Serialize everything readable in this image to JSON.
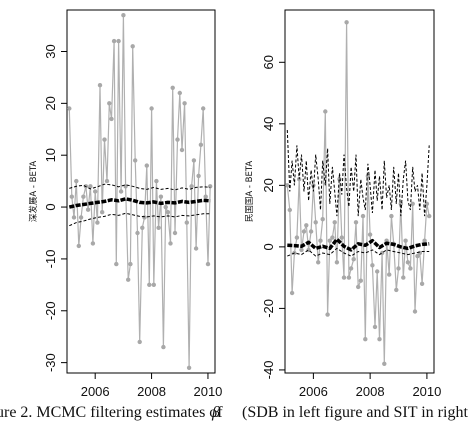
{
  "chart_data": [
    {
      "type": "line",
      "title": "",
      "xlabel": "",
      "ylabel": "深发展A - BETA",
      "xlim": [
        2005.0,
        2010.25
      ],
      "ylim": [
        -32,
        38
      ],
      "x_ticks": [
        2006,
        2008,
        2010
      ],
      "y_ticks": [
        -30,
        -20,
        -10,
        0,
        10,
        20,
        30
      ],
      "grid": false,
      "series": [
        {
          "style": "gray line with dots",
          "x": [
            2005.08,
            2005.17,
            2005.25,
            2005.33,
            2005.42,
            2005.5,
            2005.58,
            2005.67,
            2005.75,
            2005.83,
            2005.92,
            2006.0,
            2006.08,
            2006.17,
            2006.25,
            2006.33,
            2006.42,
            2006.5,
            2006.58,
            2006.67,
            2006.75,
            2006.83,
            2006.92,
            2007.0,
            2007.08,
            2007.17,
            2007.25,
            2007.33,
            2007.42,
            2007.5,
            2007.58,
            2007.67,
            2007.75,
            2007.83,
            2007.92,
            2008.0,
            2008.08,
            2008.17,
            2008.25,
            2008.33,
            2008.42,
            2008.5,
            2008.58,
            2008.67,
            2008.75,
            2008.83,
            2008.92,
            2009.0,
            2009.08,
            2009.17,
            2009.25,
            2009.33,
            2009.42,
            2009.5,
            2009.58,
            2009.67,
            2009.75,
            2009.83,
            2009.92,
            2010.0,
            2010.08
          ],
          "y": [
            19,
            2,
            -2,
            5,
            -7.5,
            -2,
            2,
            4,
            -0.5,
            4,
            -7,
            3,
            -3,
            23.5,
            -1,
            13,
            5,
            20,
            17,
            32,
            -11,
            32,
            3,
            37,
            4,
            -14,
            -11,
            31,
            9,
            -5,
            -26,
            -4,
            -2,
            8,
            -15,
            19,
            -15,
            5,
            -4,
            2,
            -27,
            0,
            -1,
            -7,
            23,
            -5,
            13,
            22,
            11,
            20,
            -3,
            -31,
            4,
            9,
            -8,
            6,
            12,
            19,
            2,
            -11,
            4
          ]
        },
        {
          "style": "black thick line",
          "x": [
            2005.08,
            2005.33,
            2005.58,
            2005.83,
            2006.08,
            2006.33,
            2006.58,
            2006.83,
            2007.08,
            2007.33,
            2007.58,
            2007.83,
            2008.08,
            2008.33,
            2008.58,
            2008.83,
            2009.08,
            2009.33,
            2009.58,
            2009.83,
            2010.08
          ],
          "y": [
            0,
            0.3,
            0.5,
            0.7,
            0.9,
            1.1,
            1.4,
            1.2,
            1.6,
            1.3,
            0.9,
            0.8,
            1.0,
            0.7,
            0.9,
            0.8,
            1.1,
            0.9,
            1.1,
            1.3,
            1.2
          ]
        },
        {
          "style": "dashed upper band",
          "x": [
            2005.08,
            2005.33,
            2005.58,
            2005.83,
            2006.08,
            2006.33,
            2006.58,
            2006.83,
            2007.08,
            2007.33,
            2007.58,
            2007.83,
            2008.08,
            2008.33,
            2008.58,
            2008.83,
            2009.08,
            2009.33,
            2009.58,
            2009.83,
            2010.08
          ],
          "y": [
            3.6,
            4.0,
            4.2,
            3.5,
            3.9,
            4.4,
            4.3,
            3.9,
            4.3,
            4.0,
            3.6,
            3.4,
            3.8,
            3.4,
            3.6,
            3.3,
            3.7,
            3.4,
            3.8,
            3.9,
            3.8
          ]
        },
        {
          "style": "dashed lower band",
          "x": [
            2005.08,
            2005.33,
            2005.58,
            2005.83,
            2006.08,
            2006.33,
            2006.58,
            2006.83,
            2007.08,
            2007.33,
            2007.58,
            2007.83,
            2008.08,
            2008.33,
            2008.58,
            2008.83,
            2009.08,
            2009.33,
            2009.58,
            2009.83,
            2010.08
          ],
          "y": [
            -3.6,
            -3.0,
            -2.7,
            -2.3,
            -2.0,
            -1.8,
            -1.4,
            -1.6,
            -1.2,
            -1.5,
            -1.8,
            -1.9,
            -1.7,
            -1.9,
            -1.7,
            -1.9,
            -1.6,
            -1.7,
            -1.5,
            -1.3,
            -1.3
          ]
        }
      ]
    },
    {
      "type": "line",
      "title": "",
      "xlabel": "",
      "ylabel": "民国国A - BETA",
      "xlim": [
        2005.0,
        2010.25
      ],
      "ylim": [
        -41,
        77
      ],
      "x_ticks": [
        2006,
        2008,
        2010
      ],
      "y_ticks": [
        -40,
        -20,
        0,
        20,
        40,
        60
      ],
      "grid": false,
      "series": [
        {
          "style": "gray line with dots",
          "x": [
            2005.08,
            2005.17,
            2005.25,
            2005.33,
            2005.42,
            2005.5,
            2005.58,
            2005.67,
            2005.75,
            2005.83,
            2005.92,
            2006.0,
            2006.08,
            2006.17,
            2006.25,
            2006.33,
            2006.42,
            2006.5,
            2006.58,
            2006.67,
            2006.75,
            2006.83,
            2006.92,
            2007.0,
            2007.08,
            2007.17,
            2007.25,
            2007.33,
            2007.42,
            2007.5,
            2007.58,
            2007.67,
            2007.75,
            2007.83,
            2007.92,
            2008.0,
            2008.08,
            2008.17,
            2008.25,
            2008.33,
            2008.42,
            2008.5,
            2008.58,
            2008.67,
            2008.75,
            2008.83,
            2008.92,
            2009.0,
            2009.08,
            2009.17,
            2009.25,
            2009.33,
            2009.42,
            2009.5,
            2009.58,
            2009.67,
            2009.75,
            2009.83,
            2009.92,
            2010.0,
            2010.08
          ],
          "y": [
            20,
            12,
            -15,
            -2,
            3,
            22,
            -1,
            5,
            7,
            -1,
            5,
            20,
            8,
            -5,
            2,
            9,
            44,
            -22,
            2,
            3,
            8,
            -5,
            22,
            3,
            -10,
            73,
            -10,
            -7,
            -4,
            8,
            -13,
            -11,
            10,
            -30,
            23,
            4,
            -6,
            -26,
            -8,
            -30,
            -2,
            -38,
            2,
            -9,
            10,
            1,
            -14,
            -7,
            14,
            -10,
            2,
            -5,
            -7,
            14,
            -21,
            -3,
            -2,
            -12,
            2,
            14,
            10
          ]
        },
        {
          "style": "black thick line",
          "x": [
            2005.08,
            2005.33,
            2005.58,
            2005.83,
            2006.08,
            2006.33,
            2006.58,
            2006.83,
            2007.08,
            2007.33,
            2007.58,
            2007.83,
            2008.08,
            2008.33,
            2008.58,
            2008.83,
            2009.08,
            2009.33,
            2009.58,
            2009.83,
            2010.08
          ],
          "y": [
            0.5,
            0.4,
            0.2,
            1.5,
            -0.5,
            0.2,
            -0.5,
            2.5,
            0.2,
            -1.0,
            1.0,
            0.5,
            2.0,
            -0.2,
            1.2,
            0.8,
            0.0,
            -0.5,
            0.3,
            0.8,
            1.0
          ]
        },
        {
          "style": "dashed upper band",
          "x": [
            2005.08,
            2005.17,
            2005.25,
            2005.33,
            2005.42,
            2005.5,
            2005.58,
            2005.67,
            2005.75,
            2005.83,
            2005.92,
            2006.0,
            2006.08,
            2006.17,
            2006.25,
            2006.33,
            2006.42,
            2006.5,
            2006.58,
            2006.67,
            2006.75,
            2006.83,
            2006.92,
            2007.0,
            2007.08,
            2007.17,
            2007.25,
            2007.33,
            2007.42,
            2007.5,
            2007.58,
            2007.67,
            2007.75,
            2007.83,
            2007.92,
            2008.0,
            2008.08,
            2008.17,
            2008.25,
            2008.33,
            2008.42,
            2008.5,
            2008.58,
            2008.67,
            2008.75,
            2008.83,
            2008.92,
            2009.0,
            2009.08,
            2009.17,
            2009.25,
            2009.33,
            2009.42,
            2009.5,
            2009.58,
            2009.67,
            2009.75,
            2009.83,
            2009.92,
            2010.0,
            2010.08
          ],
          "y": [
            38,
            18,
            28,
            20,
            33,
            22,
            30,
            18,
            28,
            15,
            25,
            18,
            30,
            22,
            12,
            28,
            20,
            32,
            14,
            26,
            18,
            10,
            24,
            17,
            30,
            19,
            13,
            26,
            18,
            30,
            10,
            22,
            16,
            12,
            27,
            20,
            11,
            25,
            15,
            23,
            12,
            28,
            16,
            20,
            12,
            26,
            14,
            24,
            10,
            22,
            28,
            15,
            12,
            26,
            18,
            20,
            12,
            24,
            10,
            20,
            33
          ]
        },
        {
          "style": "dashed lower band",
          "x": [
            2005.08,
            2005.33,
            2005.58,
            2005.83,
            2006.08,
            2006.33,
            2006.58,
            2006.83,
            2007.08,
            2007.33,
            2007.58,
            2007.83,
            2008.08,
            2008.33,
            2008.58,
            2008.83,
            2009.08,
            2009.33,
            2009.58,
            2009.83,
            2010.08
          ],
          "y": [
            -3,
            -2,
            -2.5,
            -1,
            -3,
            -2,
            -2.5,
            -0.5,
            -2,
            -3,
            -1.5,
            -2,
            -1,
            -2.5,
            -1,
            -1.5,
            -2,
            -2.5,
            -2,
            -1.5,
            -1.5
          ]
        }
      ]
    }
  ],
  "caption": {
    "prefix": "ure 2. MCMC filtering estimates of ",
    "symbol": "β",
    "suffix": "  (SDB in left figure and SIT in right"
  }
}
